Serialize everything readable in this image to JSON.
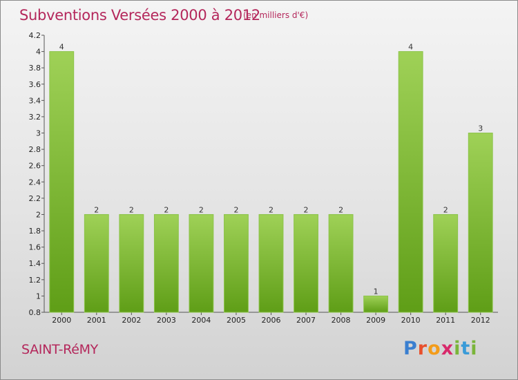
{
  "header": {
    "title": "Subventions Versées 2000 à 2012",
    "unit_note": "(en milliers d'€)"
  },
  "footer": {
    "commune": "SAINT-RéMY",
    "logo_letters": [
      "P",
      "r",
      "o",
      "x",
      "i",
      "t",
      "i"
    ]
  },
  "colors": {
    "title": "#b4275b",
    "bar_top": "#9fd157",
    "bar_bottom": "#5f9e17",
    "axis": "#555555"
  },
  "chart_data": {
    "type": "bar",
    "title": "Subventions Versées 2000 à 2012",
    "subtitle": "(en milliers d'€)",
    "xlabel": "",
    "ylabel": "",
    "categories": [
      "2000",
      "2001",
      "2002",
      "2003",
      "2004",
      "2005",
      "2006",
      "2007",
      "2008",
      "2009",
      "2010",
      "2011",
      "2012"
    ],
    "values": [
      4,
      2,
      2,
      2,
      2,
      2,
      2,
      2,
      2,
      1,
      4,
      2,
      3
    ],
    "data_labels": [
      "4",
      "2",
      "2",
      "2",
      "2",
      "2",
      "2",
      "2",
      "2",
      "1",
      "4",
      "2",
      "3"
    ],
    "ylim": [
      0.8,
      4.2
    ],
    "y_ticks": [
      0.8,
      1,
      1.2,
      1.4,
      1.6,
      1.8,
      2,
      2.2,
      2.4,
      2.6,
      2.8,
      3,
      3.2,
      3.4,
      3.6,
      3.8,
      4,
      4.2
    ],
    "y_tick_labels": [
      "0.8",
      "1",
      "1.2",
      "1.4",
      "1.6",
      "1.8",
      "2",
      "2.2",
      "2.4",
      "2.6",
      "2.8",
      "3",
      "3.2",
      "3.4",
      "3.6",
      "3.8",
      "4",
      "4.2"
    ],
    "grid": false,
    "legend": "none"
  }
}
